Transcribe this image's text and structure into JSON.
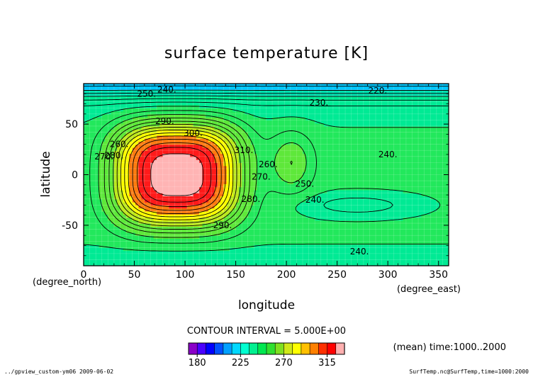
{
  "chart_data": {
    "type": "heatmap",
    "title": "surface temperature [K]",
    "xlabel": "longitude",
    "ylabel": "latitude",
    "x_unit": "(degree_east)",
    "y_unit": "(degree_north)",
    "xlim": [
      0,
      360
    ],
    "ylim": [
      -90,
      90
    ],
    "x_ticks": [
      0,
      50,
      100,
      150,
      200,
      250,
      300,
      350
    ],
    "y_ticks": [
      -50,
      0,
      50
    ],
    "contour_interval": "CONTOUR INTERVAL = 5.000E+00",
    "mean_label": "(mean) time:1000..2000",
    "footer_left": "../gpview_custom-ym06  2009-06-02",
    "footer_right": "SurfTemp.nc@SurfTemp,time=1000:2000",
    "colorbar": {
      "tick_labels": [
        "180",
        "225",
        "270",
        "315"
      ],
      "colors": [
        "#8a00c8",
        "#4a00ff",
        "#0000ff",
        "#0050ff",
        "#00a0ff",
        "#00d8ff",
        "#00ffd0",
        "#00f090",
        "#00e850",
        "#30e030",
        "#80e020",
        "#d0e818",
        "#ffff00",
        "#ffc000",
        "#ff8000",
        "#ff3000",
        "#ff0000",
        "#ffb0b0"
      ]
    },
    "bands": [
      {
        "lower": 310,
        "color": "#ffb4b4"
      },
      {
        "lower": 300,
        "color": "#ff1a1a"
      },
      {
        "lower": 290,
        "color": "#ff7a10"
      },
      {
        "lower": 280,
        "color": "#ffff00"
      },
      {
        "lower": 270,
        "color": "#bce81c"
      },
      {
        "lower": 255,
        "color": "#5ee83a"
      },
      {
        "lower": 245,
        "color": "#22e85c"
      },
      {
        "lower": 230,
        "color": "#00ea94"
      },
      {
        "lower": 220,
        "color": "#00e0b0"
      },
      {
        "lower": 0,
        "color": "#00c8ff"
      }
    ],
    "contour_labels": [
      {
        "text": "240.",
        "lon": 82,
        "lat": 84
      },
      {
        "text": "250.",
        "lon": 62,
        "lat": 80
      },
      {
        "text": "220.",
        "lon": 290,
        "lat": 83
      },
      {
        "text": "230.",
        "lon": 232,
        "lat": 71
      },
      {
        "text": "240.",
        "lon": 300,
        "lat": 20
      },
      {
        "text": "300.",
        "lon": 108,
        "lat": 41
      },
      {
        "text": "290.",
        "lon": 80,
        "lat": 53
      },
      {
        "text": "310.",
        "lon": 158,
        "lat": 24
      },
      {
        "text": "270.",
        "lon": 20,
        "lat": 18
      },
      {
        "text": "280.",
        "lon": 30,
        "lat": 19
      },
      {
        "text": "260.",
        "lon": 35,
        "lat": 30
      },
      {
        "text": "260.",
        "lon": 182,
        "lat": 10
      },
      {
        "text": "270.",
        "lon": 175,
        "lat": -2
      },
      {
        "text": "280.",
        "lon": 165,
        "lat": -24
      },
      {
        "text": "290.",
        "lon": 137,
        "lat": -50
      },
      {
        "text": "250.",
        "lon": 218,
        "lat": -9
      },
      {
        "text": "240.",
        "lon": 228,
        "lat": -25
      },
      {
        "text": "240.",
        "lon": 272,
        "lat": -76
      }
    ]
  }
}
